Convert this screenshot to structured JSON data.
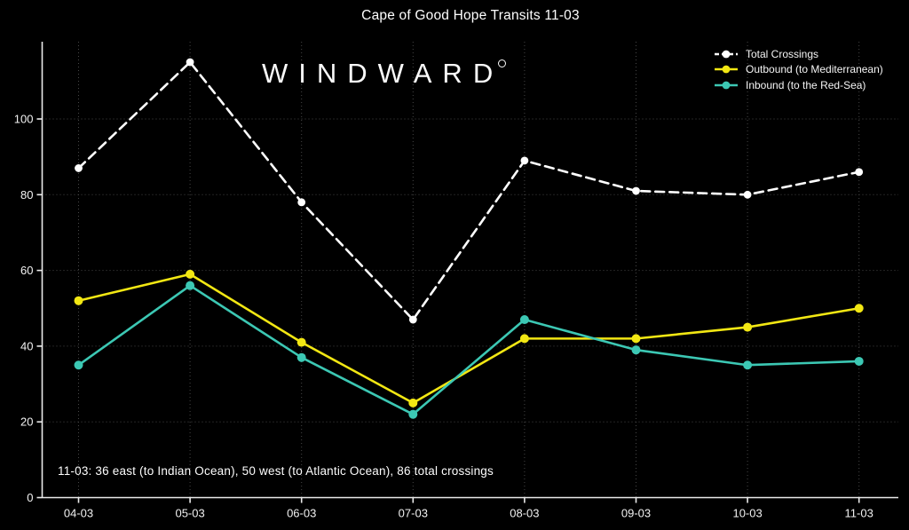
{
  "chart": {
    "title": "Cape of Good Hope Transits 11-03"
  },
  "branding": {
    "logo_text": "WINDWARD",
    "logo_mark": "degree-circle"
  },
  "colors": {
    "background": "#000000",
    "text": "#ffffff",
    "grid": "#474747",
    "axis": "#eaeaea",
    "total_series": "#ffffff",
    "outbound_series": "#f2e713",
    "inbound_series": "#3cc8b4"
  },
  "chart_data": {
    "type": "line",
    "title": "Cape of Good Hope Transits 11-03",
    "categories": [
      "04-03",
      "05-03",
      "06-03",
      "07-03",
      "08-03",
      "09-03",
      "10-03",
      "11-03"
    ],
    "series": [
      {
        "name": "Total Crossings",
        "values": [
          87,
          115,
          78,
          47,
          89,
          81,
          80,
          86
        ],
        "color": "#ffffff",
        "dashed": true,
        "marker": "circle"
      },
      {
        "name": "Outbound (to Mediterranean)",
        "values": [
          52,
          59,
          41,
          25,
          42,
          42,
          45,
          50
        ],
        "color": "#f2e713",
        "dashed": false,
        "marker": "circle"
      },
      {
        "name": "Inbound (to the Red-Sea)",
        "values": [
          35,
          56,
          37,
          22,
          47,
          39,
          35,
          36
        ],
        "color": "#3cc8b4",
        "dashed": false,
        "marker": "circle"
      }
    ],
    "y_ticks": [
      0,
      20,
      40,
      60,
      80,
      100
    ],
    "ylim": [
      0,
      120
    ],
    "xlabel": "",
    "ylabel": "",
    "grid": true,
    "legend_position": "top-right",
    "annotation": "11-03: 36 east (to Indian Ocean), 50 west (to Atlantic Ocean), 86 total crossings"
  }
}
